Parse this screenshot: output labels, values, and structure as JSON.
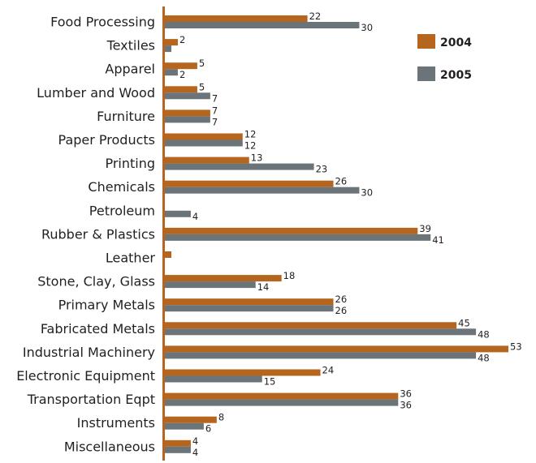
{
  "chart_data": {
    "type": "bar",
    "orientation": "horizontal",
    "categories": [
      "Food Processing",
      "Textiles",
      "Apparel",
      "Lumber and Wood",
      "Furniture",
      "Paper Products",
      "Printing",
      "Chemicals",
      "Petroleum",
      "Rubber & Plastics",
      "Leather",
      "Stone, Clay, Glass",
      "Primary Metals",
      "Fabricated Metals",
      "Industrial Machinery",
      "Electronic Equipment",
      "Transportation Eqpt",
      "Instruments",
      "Miscellaneous"
    ],
    "series": [
      {
        "name": "2004",
        "color": "#b5651d",
        "values": [
          22,
          2,
          5,
          5,
          7,
          12,
          13,
          26,
          0,
          39,
          1,
          18,
          26,
          45,
          53,
          24,
          36,
          8,
          4
        ],
        "labels": [
          "22",
          "2",
          "5",
          "5",
          "7",
          "12",
          "13",
          "26",
          "",
          "39",
          "",
          "18",
          "26",
          "45",
          "53",
          "24",
          "36",
          "8",
          "4"
        ]
      },
      {
        "name": "2005",
        "color": "#6b7478",
        "values": [
          30,
          1,
          2,
          7,
          7,
          12,
          23,
          30,
          4,
          41,
          0,
          14,
          26,
          48,
          48,
          15,
          36,
          6,
          4
        ],
        "labels": [
          "30",
          "",
          "2",
          "7",
          "7",
          "12",
          "23",
          "30",
          "4",
          "41",
          "",
          "14",
          "26",
          "48",
          "48",
          "15",
          "36",
          "6",
          "4"
        ]
      }
    ],
    "xlim": [
      0,
      54
    ],
    "legend_position": "top-right",
    "grid": false,
    "title": "",
    "xlabel": "",
    "ylabel": ""
  }
}
